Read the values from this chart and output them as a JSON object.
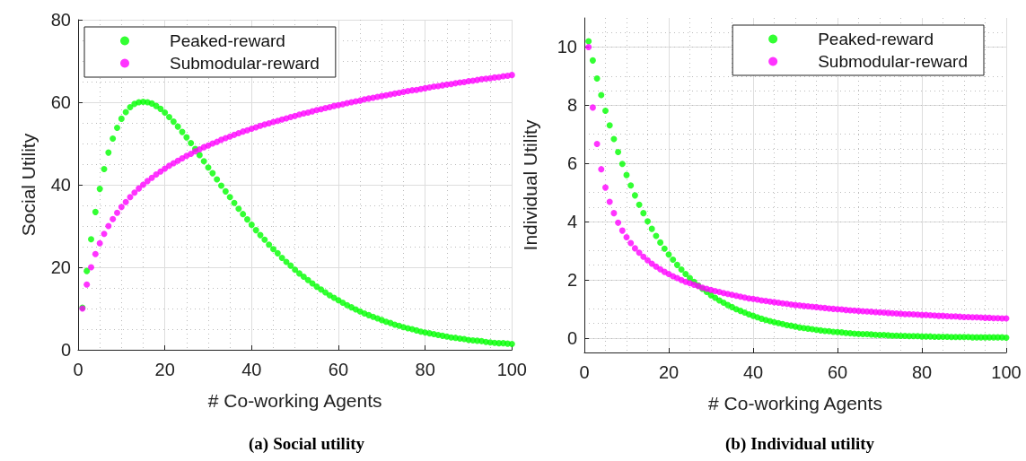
{
  "chart_data": [
    {
      "type": "scatter",
      "title": "(a) Social utility",
      "xlabel": "# Co-working Agents",
      "ylabel": "Social Utility",
      "x": [
        1,
        2,
        3,
        4,
        5,
        6,
        7,
        8,
        9,
        10,
        11,
        12,
        13,
        14,
        15,
        16,
        17,
        18,
        19,
        20,
        21,
        22,
        23,
        24,
        25,
        26,
        27,
        28,
        29,
        30,
        31,
        32,
        33,
        34,
        35,
        36,
        37,
        38,
        39,
        40,
        41,
        42,
        43,
        44,
        45,
        46,
        47,
        48,
        49,
        50,
        51,
        52,
        53,
        54,
        55,
        56,
        57,
        58,
        59,
        60,
        61,
        62,
        63,
        64,
        65,
        66,
        67,
        68,
        69,
        70,
        71,
        72,
        73,
        74,
        75,
        76,
        77,
        78,
        79,
        80,
        81,
        82,
        83,
        84,
        85,
        86,
        87,
        88,
        89,
        90,
        91,
        92,
        93,
        94,
        95,
        96,
        97,
        98,
        99,
        100
      ],
      "series": [
        {
          "name": "Peaked-reward",
          "color": "#00ff00",
          "values": [
            10.2,
            19.1,
            26.8,
            33.4,
            39.0,
            43.8,
            47.8,
            51.2,
            53.8,
            56.0,
            57.6,
            58.8,
            59.6,
            60.0,
            60.1,
            60.0,
            59.7,
            59.1,
            58.4,
            57.5,
            56.4,
            55.3,
            54.1,
            52.8,
            51.5,
            50.1,
            48.7,
            47.2,
            45.7,
            44.2,
            42.8,
            41.3,
            39.8,
            38.4,
            37.0,
            35.6,
            34.2,
            32.9,
            31.6,
            30.3,
            29.0,
            27.8,
            26.7,
            25.5,
            24.4,
            23.4,
            22.3,
            21.3,
            20.4,
            19.4,
            18.5,
            17.7,
            16.9,
            16.1,
            15.3,
            14.6,
            13.9,
            13.2,
            12.6,
            12.0,
            11.4,
            10.8,
            10.3,
            9.8,
            9.3,
            8.8,
            8.4,
            8.0,
            7.6,
            7.2,
            6.8,
            6.5,
            6.1,
            5.8,
            5.5,
            5.2,
            5.0,
            4.7,
            4.4,
            4.2,
            4.0,
            3.8,
            3.6,
            3.4,
            3.2,
            3.0,
            2.9,
            2.7,
            2.6,
            2.4,
            2.3,
            2.2,
            2.1,
            1.9,
            1.8,
            1.7,
            1.6,
            1.6,
            1.5,
            1.4
          ]
        },
        {
          "name": "Submodular-reward",
          "color": "#ff00ff",
          "values": [
            10.0,
            15.8,
            20.0,
            23.2,
            25.8,
            28.1,
            30.0,
            31.7,
            33.2,
            34.6,
            35.8,
            37.0,
            38.1,
            39.1,
            40.0,
            40.9,
            41.7,
            42.5,
            43.2,
            43.9,
            44.6,
            45.2,
            45.8,
            46.4,
            47.0,
            47.5,
            48.1,
            48.6,
            49.1,
            49.5,
            50.0,
            50.4,
            50.9,
            51.3,
            51.7,
            52.1,
            52.5,
            52.9,
            53.2,
            53.6,
            53.9,
            54.3,
            54.6,
            54.9,
            55.2,
            55.5,
            55.8,
            56.1,
            56.4,
            56.7,
            57.0,
            57.3,
            57.5,
            57.8,
            58.1,
            58.3,
            58.6,
            58.8,
            59.1,
            59.3,
            59.5,
            59.8,
            60.0,
            60.2,
            60.4,
            60.7,
            60.9,
            61.1,
            61.3,
            61.5,
            61.7,
            61.9,
            62.1,
            62.3,
            62.5,
            62.7,
            62.9,
            63.0,
            63.2,
            63.4,
            63.6,
            63.8,
            63.9,
            64.1,
            64.3,
            64.4,
            64.6,
            64.8,
            64.9,
            65.1,
            65.2,
            65.4,
            65.6,
            65.7,
            65.8,
            66.0,
            66.1,
            66.3,
            66.4,
            66.6
          ]
        }
      ],
      "xlim": [
        0,
        100
      ],
      "xticks": [
        0,
        20,
        40,
        60,
        80,
        100
      ],
      "ylim": [
        0,
        80
      ],
      "yticks": [
        0,
        20,
        40,
        60,
        80
      ],
      "grid": true,
      "legend": "top left",
      "marker": "circle"
    },
    {
      "type": "scatter",
      "title": "(b) Individual utility",
      "xlabel": "# Co-working Agents",
      "ylabel": "Individual Utility",
      "x": [
        1,
        2,
        3,
        4,
        5,
        6,
        7,
        8,
        9,
        10,
        11,
        12,
        13,
        14,
        15,
        16,
        17,
        18,
        19,
        20,
        21,
        22,
        23,
        24,
        25,
        26,
        27,
        28,
        29,
        30,
        31,
        32,
        33,
        34,
        35,
        36,
        37,
        38,
        39,
        40,
        41,
        42,
        43,
        44,
        45,
        46,
        47,
        48,
        49,
        50,
        51,
        52,
        53,
        54,
        55,
        56,
        57,
        58,
        59,
        60,
        61,
        62,
        63,
        64,
        65,
        66,
        67,
        68,
        69,
        70,
        71,
        72,
        73,
        74,
        75,
        76,
        77,
        78,
        79,
        80,
        81,
        82,
        83,
        84,
        85,
        86,
        87,
        88,
        89,
        90,
        91,
        92,
        93,
        94,
        95,
        96,
        97,
        98,
        99,
        100
      ],
      "series": [
        {
          "name": "Peaked-reward",
          "color": "#00ff00",
          "values": [
            10.2,
            9.54,
            8.92,
            8.35,
            7.81,
            7.31,
            6.84,
            6.39,
            5.98,
            5.6,
            5.24,
            4.9,
            4.58,
            4.29,
            4.01,
            3.75,
            3.51,
            3.28,
            3.07,
            2.87,
            2.69,
            2.51,
            2.35,
            2.2,
            2.06,
            1.93,
            1.8,
            1.69,
            1.58,
            1.47,
            1.38,
            1.29,
            1.21,
            1.13,
            1.06,
            0.99,
            0.93,
            0.87,
            0.81,
            0.76,
            0.71,
            0.66,
            0.62,
            0.58,
            0.54,
            0.51,
            0.48,
            0.44,
            0.42,
            0.39,
            0.36,
            0.34,
            0.32,
            0.3,
            0.28,
            0.26,
            0.24,
            0.23,
            0.21,
            0.2,
            0.19,
            0.17,
            0.16,
            0.15,
            0.14,
            0.13,
            0.13,
            0.12,
            0.11,
            0.1,
            0.1,
            0.09,
            0.08,
            0.08,
            0.07,
            0.07,
            0.06,
            0.06,
            0.06,
            0.05,
            0.05,
            0.05,
            0.04,
            0.04,
            0.04,
            0.04,
            0.03,
            0.03,
            0.03,
            0.03,
            0.03,
            0.02,
            0.02,
            0.02,
            0.02,
            0.02,
            0.02,
            0.02,
            0.02,
            0.01
          ]
        },
        {
          "name": "Submodular-reward",
          "color": "#ff00ff",
          "values": [
            10.0,
            7.92,
            6.67,
            5.8,
            5.17,
            4.68,
            4.29,
            3.96,
            3.69,
            3.46,
            3.26,
            3.08,
            2.93,
            2.79,
            2.67,
            2.55,
            2.45,
            2.36,
            2.27,
            2.2,
            2.12,
            2.06,
            1.99,
            1.93,
            1.88,
            1.83,
            1.78,
            1.73,
            1.69,
            1.65,
            1.61,
            1.58,
            1.54,
            1.51,
            1.48,
            1.45,
            1.42,
            1.39,
            1.36,
            1.34,
            1.32,
            1.29,
            1.27,
            1.25,
            1.23,
            1.21,
            1.19,
            1.17,
            1.15,
            1.13,
            1.12,
            1.1,
            1.09,
            1.07,
            1.06,
            1.04,
            1.03,
            1.01,
            1.0,
            0.99,
            0.98,
            0.96,
            0.95,
            0.94,
            0.93,
            0.92,
            0.91,
            0.9,
            0.89,
            0.88,
            0.87,
            0.86,
            0.85,
            0.84,
            0.83,
            0.82,
            0.82,
            0.81,
            0.8,
            0.79,
            0.79,
            0.78,
            0.77,
            0.76,
            0.76,
            0.75,
            0.74,
            0.74,
            0.73,
            0.72,
            0.72,
            0.71,
            0.71,
            0.7,
            0.69,
            0.69,
            0.68,
            0.68,
            0.67,
            0.67
          ]
        }
      ],
      "xlim": [
        0,
        100
      ],
      "xticks": [
        0,
        20,
        40,
        60,
        80,
        100
      ],
      "ylim": [
        -0.5,
        11
      ],
      "yticks": [
        0,
        2,
        4,
        6,
        8,
        10
      ],
      "grid": true,
      "legend": "top right",
      "marker": "circle"
    }
  ]
}
